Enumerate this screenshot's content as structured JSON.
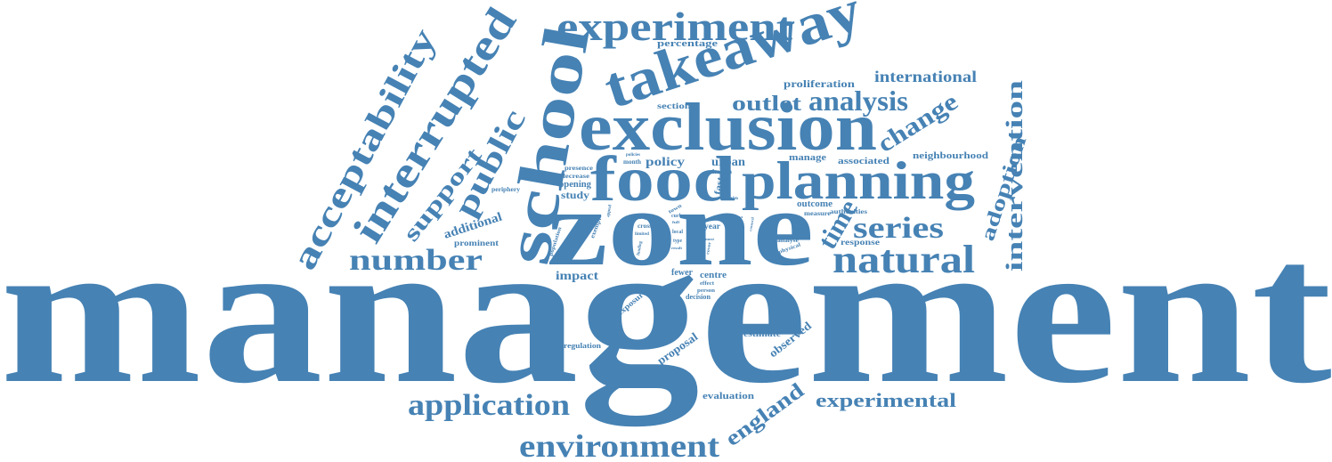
{
  "color": "#4682b4",
  "words": [
    "management",
    "zone",
    "exclusion",
    "school",
    "takeaway",
    "food",
    "planning",
    "experiment",
    "interrupted",
    "acceptability",
    "public",
    "support",
    "natural",
    "number",
    "series",
    "analysis",
    "outlet",
    "time",
    "adoption",
    "intervention",
    "change",
    "international",
    "proliferation",
    "percentage",
    "sectional",
    "application",
    "environment",
    "england",
    "experimental",
    "additional",
    "prominent",
    "impact",
    "evaluation",
    "estimate",
    "observed",
    "proposal",
    "regulation",
    "exposure",
    "decision",
    "person",
    "effect",
    "fewer",
    "centre",
    "policy",
    "urban",
    "manage",
    "associated",
    "neighbourhood",
    "health",
    "fast",
    "study",
    "opening",
    "decrease",
    "presence",
    "periphery",
    "month",
    "policies",
    "outcome",
    "measure",
    "authorities",
    "chain",
    "town",
    "response",
    "analyse",
    "physical",
    "curb",
    "local",
    "year",
    "cross",
    "exempt",
    "population",
    "young",
    "limited",
    "type",
    "funding",
    "cover",
    "result",
    "appeal",
    "sold",
    "most",
    "full",
    "council"
  ]
}
